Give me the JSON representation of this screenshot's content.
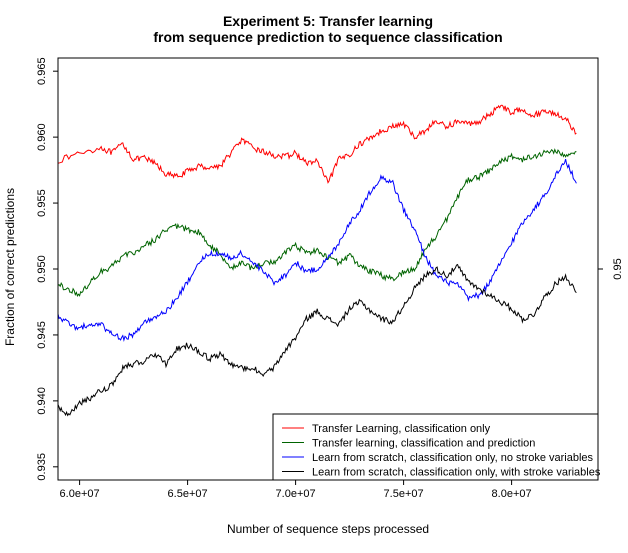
{
  "chart_data": {
    "type": "line",
    "title": [
      "Experiment 5: Transfer learning",
      "from sequence prediction to sequence classification"
    ],
    "xlabel": "Number of sequence steps processed",
    "ylabel": "Fraction of correct predictions",
    "xlim": [
      59000000,
      84000000
    ],
    "ylim": [
      0.934,
      0.966
    ],
    "x_ticks": [
      {
        "value": 60000000,
        "label": "6.0e+07"
      },
      {
        "value": 65000000,
        "label": "6.5e+07"
      },
      {
        "value": 70000000,
        "label": "7.0e+07"
      },
      {
        "value": 75000000,
        "label": "7.5e+07"
      },
      {
        "value": 80000000,
        "label": "8.0e+07"
      }
    ],
    "y_ticks": [
      {
        "value": 0.935,
        "label": "0.935"
      },
      {
        "value": 0.94,
        "label": "0.940"
      },
      {
        "value": 0.945,
        "label": "0.945"
      },
      {
        "value": 0.95,
        "label": "0.950"
      },
      {
        "value": 0.955,
        "label": "0.955"
      },
      {
        "value": 0.96,
        "label": "0.960"
      },
      {
        "value": 0.965,
        "label": "0.965"
      }
    ],
    "right_ticks": [
      {
        "value": 0.95,
        "label": "0.95"
      }
    ],
    "grid": false,
    "legend_position": "bottom-right",
    "series": [
      {
        "name": "Transfer Learning, classification only",
        "color": "#ff0000",
        "x": [
          59000000,
          60000000,
          61000000,
          61500000,
          62000000,
          62500000,
          63000000,
          63500000,
          64000000,
          64500000,
          65000000,
          65500000,
          66000000,
          66500000,
          67000000,
          67500000,
          68000000,
          68500000,
          69000000,
          69500000,
          70000000,
          70500000,
          71000000,
          71500000,
          72000000,
          72500000,
          73000000,
          73500000,
          74000000,
          74500000,
          75000000,
          75500000,
          76000000,
          76500000,
          77000000,
          77500000,
          78000000,
          78500000,
          79000000,
          79500000,
          80000000,
          80500000,
          81000000,
          81500000,
          82000000,
          82500000,
          83000000
        ],
        "y": [
          0.9582,
          0.9588,
          0.9592,
          0.9588,
          0.9595,
          0.9583,
          0.9584,
          0.958,
          0.9572,
          0.957,
          0.9574,
          0.9578,
          0.9577,
          0.9578,
          0.9588,
          0.9598,
          0.9592,
          0.9589,
          0.9586,
          0.9585,
          0.9588,
          0.958,
          0.9582,
          0.9565,
          0.9583,
          0.9587,
          0.9595,
          0.96,
          0.9605,
          0.9608,
          0.961,
          0.96,
          0.9605,
          0.9612,
          0.9608,
          0.9612,
          0.961,
          0.9612,
          0.9617,
          0.9625,
          0.9618,
          0.9622,
          0.9616,
          0.962,
          0.9618,
          0.9614,
          0.9603
        ]
      },
      {
        "name": "Transfer learning, classification and prediction",
        "color": "#006400",
        "x": [
          59000000,
          59500000,
          60000000,
          60500000,
          61000000,
          61500000,
          62000000,
          62500000,
          63000000,
          63500000,
          64000000,
          64500000,
          65000000,
          65500000,
          66000000,
          66500000,
          67000000,
          67500000,
          68000000,
          68500000,
          69000000,
          69500000,
          70000000,
          70500000,
          71000000,
          71500000,
          72000000,
          72500000,
          73000000,
          73500000,
          74000000,
          74500000,
          75000000,
          75500000,
          76000000,
          76500000,
          77000000,
          77500000,
          78000000,
          78500000,
          79000000,
          79500000,
          80000000,
          80500000,
          81000000,
          81500000,
          82000000,
          82500000,
          83000000
        ],
        "y": [
          0.9488,
          0.9485,
          0.948,
          0.949,
          0.9498,
          0.9502,
          0.951,
          0.9512,
          0.9518,
          0.9522,
          0.953,
          0.9532,
          0.953,
          0.9528,
          0.9518,
          0.9512,
          0.95,
          0.9505,
          0.95,
          0.9505,
          0.9505,
          0.9512,
          0.9518,
          0.9512,
          0.9515,
          0.9508,
          0.9505,
          0.951,
          0.9502,
          0.9498,
          0.9495,
          0.9492,
          0.9498,
          0.95,
          0.9515,
          0.9525,
          0.9538,
          0.9555,
          0.9568,
          0.957,
          0.9575,
          0.9582,
          0.9585,
          0.9583,
          0.9585,
          0.9588,
          0.959,
          0.9585,
          0.9589
        ]
      },
      {
        "name": "Learn from scratch, classification only, no stroke variables",
        "color": "#0000ff",
        "x": [
          59000000,
          59500000,
          60000000,
          60500000,
          61000000,
          61500000,
          62000000,
          62500000,
          63000000,
          63500000,
          64000000,
          64500000,
          65000000,
          65500000,
          66000000,
          66500000,
          67000000,
          67500000,
          68000000,
          68500000,
          69000000,
          69500000,
          70000000,
          70500000,
          71000000,
          71500000,
          72000000,
          72500000,
          73000000,
          73500000,
          74000000,
          74500000,
          75000000,
          75500000,
          76000000,
          76500000,
          77000000,
          77500000,
          78000000,
          78500000,
          79000000,
          79500000,
          80000000,
          80500000,
          81000000,
          81500000,
          82000000,
          82500000,
          83000000
        ],
        "y": [
          0.9465,
          0.9458,
          0.9455,
          0.9458,
          0.9458,
          0.945,
          0.9448,
          0.945,
          0.946,
          0.9462,
          0.9468,
          0.9478,
          0.949,
          0.9505,
          0.9512,
          0.9512,
          0.9508,
          0.9512,
          0.9505,
          0.9498,
          0.949,
          0.9495,
          0.9505,
          0.9498,
          0.95,
          0.9508,
          0.952,
          0.9535,
          0.9545,
          0.956,
          0.957,
          0.9565,
          0.9545,
          0.953,
          0.951,
          0.9495,
          0.949,
          0.9488,
          0.9478,
          0.948,
          0.949,
          0.9505,
          0.952,
          0.9535,
          0.9545,
          0.9555,
          0.957,
          0.9582,
          0.9565
        ]
      },
      {
        "name": "Learn from scratch, classification only, with stroke variables",
        "color": "#000000",
        "x": [
          59000000,
          59500000,
          60000000,
          60500000,
          61000000,
          61500000,
          62000000,
          62500000,
          63000000,
          63500000,
          64000000,
          64500000,
          65000000,
          65500000,
          66000000,
          66500000,
          67000000,
          67500000,
          68000000,
          68500000,
          69000000,
          69500000,
          70000000,
          70500000,
          71000000,
          71500000,
          72000000,
          72500000,
          73000000,
          73500000,
          74000000,
          74500000,
          75000000,
          75500000,
          76000000,
          76500000,
          77000000,
          77500000,
          78000000,
          78500000,
          79000000,
          79500000,
          80000000,
          80500000,
          81000000,
          81500000,
          82000000,
          82500000,
          83000000
        ],
        "y": [
          0.9395,
          0.939,
          0.9398,
          0.9402,
          0.9408,
          0.9412,
          0.9425,
          0.9428,
          0.943,
          0.9435,
          0.9428,
          0.944,
          0.9442,
          0.9438,
          0.9432,
          0.9435,
          0.9428,
          0.9425,
          0.9425,
          0.942,
          0.9425,
          0.9438,
          0.9448,
          0.9462,
          0.9468,
          0.9462,
          0.9458,
          0.947,
          0.9475,
          0.9468,
          0.9462,
          0.946,
          0.9472,
          0.9485,
          0.9495,
          0.95,
          0.9495,
          0.9502,
          0.949,
          0.9485,
          0.948,
          0.9475,
          0.947,
          0.9462,
          0.9465,
          0.9478,
          0.9488,
          0.9495,
          0.9482
        ]
      }
    ]
  }
}
